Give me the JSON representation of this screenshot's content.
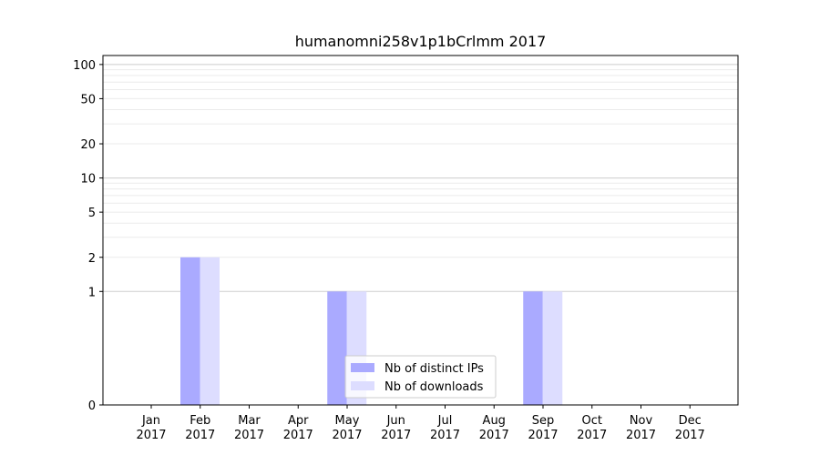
{
  "chart_data": {
    "type": "bar",
    "title": "humanomni258v1p1bCrlmm 2017",
    "xlabel": "",
    "ylabel": "",
    "categories": [
      {
        "month": "Jan",
        "year": "2017"
      },
      {
        "month": "Feb",
        "year": "2017"
      },
      {
        "month": "Mar",
        "year": "2017"
      },
      {
        "month": "Apr",
        "year": "2017"
      },
      {
        "month": "May",
        "year": "2017"
      },
      {
        "month": "Jun",
        "year": "2017"
      },
      {
        "month": "Jul",
        "year": "2017"
      },
      {
        "month": "Aug",
        "year": "2017"
      },
      {
        "month": "Sep",
        "year": "2017"
      },
      {
        "month": "Oct",
        "year": "2017"
      },
      {
        "month": "Nov",
        "year": "2017"
      },
      {
        "month": "Dec",
        "year": "2017"
      }
    ],
    "series": [
      {
        "name": "Nb of distinct IPs",
        "color": "#aaaaff",
        "values": [
          0,
          2,
          0,
          0,
          1,
          0,
          0,
          0,
          1,
          0,
          0,
          0
        ]
      },
      {
        "name": "Nb of downloads",
        "color": "#ddddff",
        "values": [
          0,
          2,
          0,
          0,
          1,
          0,
          0,
          0,
          1,
          0,
          0,
          0
        ]
      }
    ],
    "yscale": "symlog",
    "ylim": [
      0,
      120
    ],
    "yticks": [
      "0",
      "1",
      "2",
      "5",
      "10",
      "20",
      "50",
      "100"
    ],
    "grid": true,
    "legend_position": "lower center"
  }
}
